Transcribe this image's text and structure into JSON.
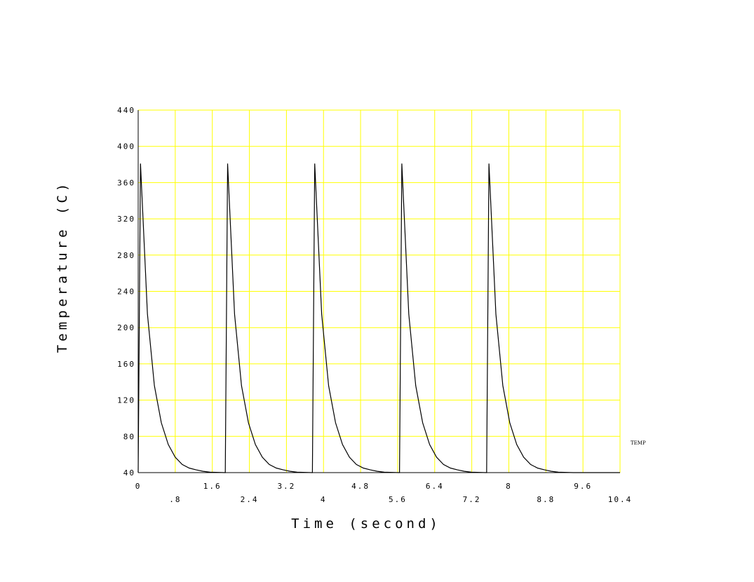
{
  "chart_data": {
    "type": "line",
    "xlabel": "Time (second)",
    "ylabel": "Temperature (C)",
    "xlim": [
      0,
      10.4
    ],
    "ylim": [
      40,
      440
    ],
    "grid": true,
    "legend_placement": "right",
    "colors": {
      "grid": "#ffff00",
      "line": "#000000",
      "axis": "#000000"
    },
    "x_ticks_upper": [
      "0",
      "1.6",
      "3.2",
      "4.8",
      "6.4",
      "8",
      "9.6"
    ],
    "x_ticks_lower": [
      ".8",
      "2.4",
      "4",
      "5.6",
      "7.2",
      "8.8",
      "10.4"
    ],
    "y_ticks": [
      "40",
      "80",
      "120",
      "160",
      "200",
      "240",
      "280",
      "320",
      "360",
      "400",
      "440"
    ],
    "series": [
      {
        "name": "TEMP",
        "x": [
          0,
          0.05,
          0.2,
          0.35,
          0.5,
          0.65,
          0.8,
          0.95,
          1.1,
          1.25,
          1.4,
          1.55,
          1.87,
          1.88,
          1.93,
          2.08,
          2.23,
          2.38,
          2.53,
          2.68,
          2.83,
          2.98,
          3.13,
          3.28,
          3.43,
          3.75,
          3.76,
          3.81,
          3.96,
          4.11,
          4.26,
          4.41,
          4.56,
          4.71,
          4.86,
          5.01,
          5.16,
          5.31,
          5.63,
          5.64,
          5.69,
          5.84,
          5.99,
          6.14,
          6.29,
          6.44,
          6.59,
          6.74,
          6.89,
          7.04,
          7.19,
          7.51,
          7.52,
          7.57,
          7.72,
          7.87,
          8.02,
          8.17,
          8.32,
          8.47,
          8.62,
          8.77,
          8.92,
          9.07,
          9.39,
          10.4
        ],
        "y": [
          40,
          381,
          215,
          136,
          95,
          71,
          57,
          49,
          45,
          43,
          41.5,
          40.5,
          40,
          40,
          381,
          215,
          136,
          95,
          71,
          57,
          49,
          45,
          43,
          41.5,
          40.5,
          40,
          40,
          381,
          215,
          136,
          95,
          71,
          57,
          49,
          45,
          43,
          41.5,
          40.5,
          40,
          40,
          381,
          215,
          136,
          95,
          71,
          57,
          49,
          45,
          43,
          41.5,
          40.5,
          40,
          40,
          381,
          215,
          136,
          95,
          71,
          57,
          49,
          45,
          43,
          41.5,
          40.5,
          40,
          40
        ]
      }
    ]
  }
}
